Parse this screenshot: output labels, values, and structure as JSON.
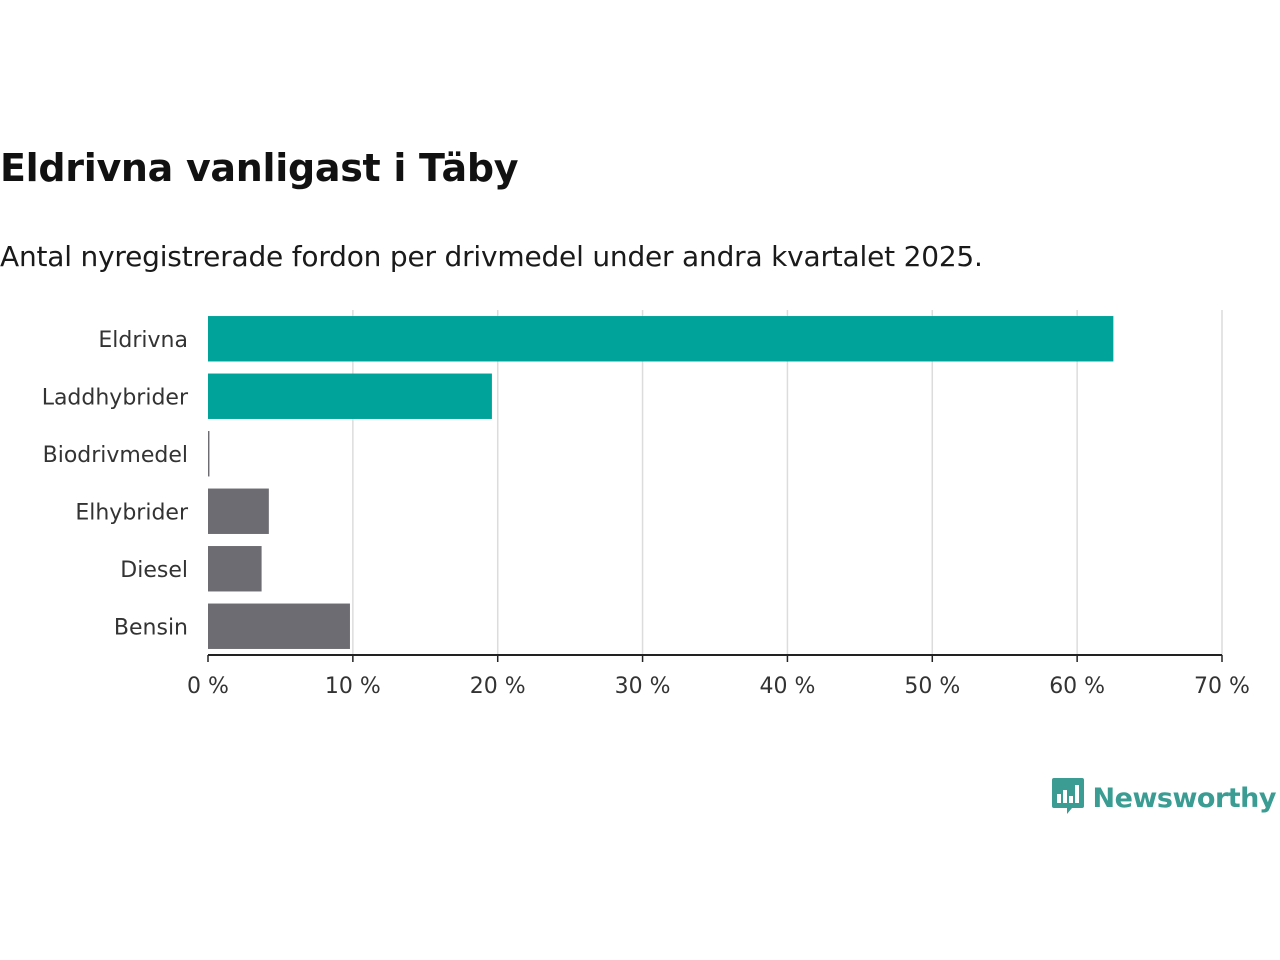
{
  "title": "Eldrivna vanligast i Täby",
  "subtitle": "Antal nyregistrerade fordon per drivmedel under andra kvartalet 2025.",
  "logo": {
    "text": "Newsworthy",
    "icon": "newsworthy-bar-chart-icon",
    "color": "#3a9c93"
  },
  "colors": {
    "highlight": "#00a39a",
    "default": "#6d6c72",
    "grid": "#dcdcdc",
    "axis": "#222222"
  },
  "chart_data": {
    "type": "bar",
    "orientation": "horizontal",
    "categories": [
      "Eldrivna",
      "Laddhybrider",
      "Biodrivmedel",
      "Elhybrider",
      "Diesel",
      "Bensin"
    ],
    "values": [
      62.5,
      19.6,
      0.1,
      4.2,
      3.7,
      9.8
    ],
    "highlighted": [
      true,
      true,
      false,
      false,
      false,
      false
    ],
    "xlim": [
      0,
      70
    ],
    "xticks": [
      0,
      10,
      20,
      30,
      40,
      50,
      60,
      70
    ],
    "tick_labels": [
      "0 %",
      "10 %",
      "20 %",
      "30 %",
      "40 %",
      "50 %",
      "60 %",
      "70 %"
    ],
    "grid": true
  }
}
